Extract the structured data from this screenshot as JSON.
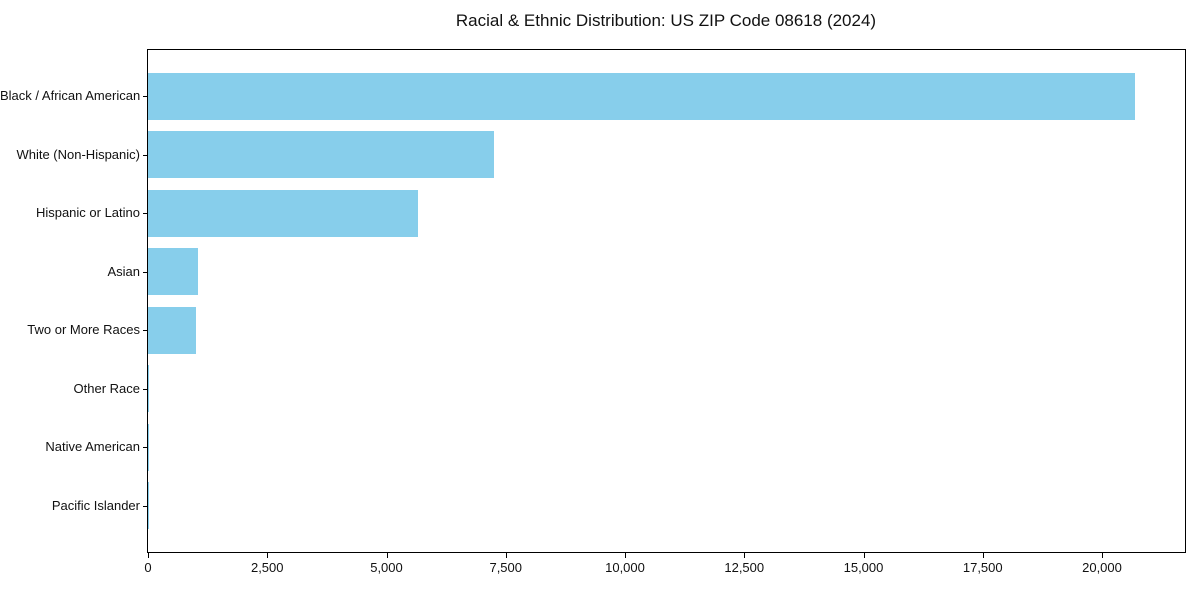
{
  "chart_data": {
    "type": "bar",
    "orientation": "horizontal",
    "title": "Racial & Ethnic Distribution: US ZIP Code 08618 (2024)",
    "xlabel": "",
    "ylabel": "",
    "categories": [
      "Black / African American",
      "White (Non-Hispanic)",
      "Hispanic or Latino",
      "Asian",
      "Two or More Races",
      "Other Race",
      "Native American",
      "Pacific Islander"
    ],
    "values": [
      20700,
      7250,
      5650,
      1040,
      1010,
      20,
      10,
      5
    ],
    "xlim": [
      0,
      21740
    ],
    "x_ticks": [
      0,
      2500,
      5000,
      7500,
      10000,
      12500,
      15000,
      17500,
      20000
    ],
    "x_tick_labels": [
      "0",
      "2,500",
      "5,000",
      "7,500",
      "10,000",
      "12,500",
      "15,000",
      "17,500",
      "20,000"
    ],
    "bar_color": "#87CEEB",
    "grid": false,
    "legend": null
  }
}
